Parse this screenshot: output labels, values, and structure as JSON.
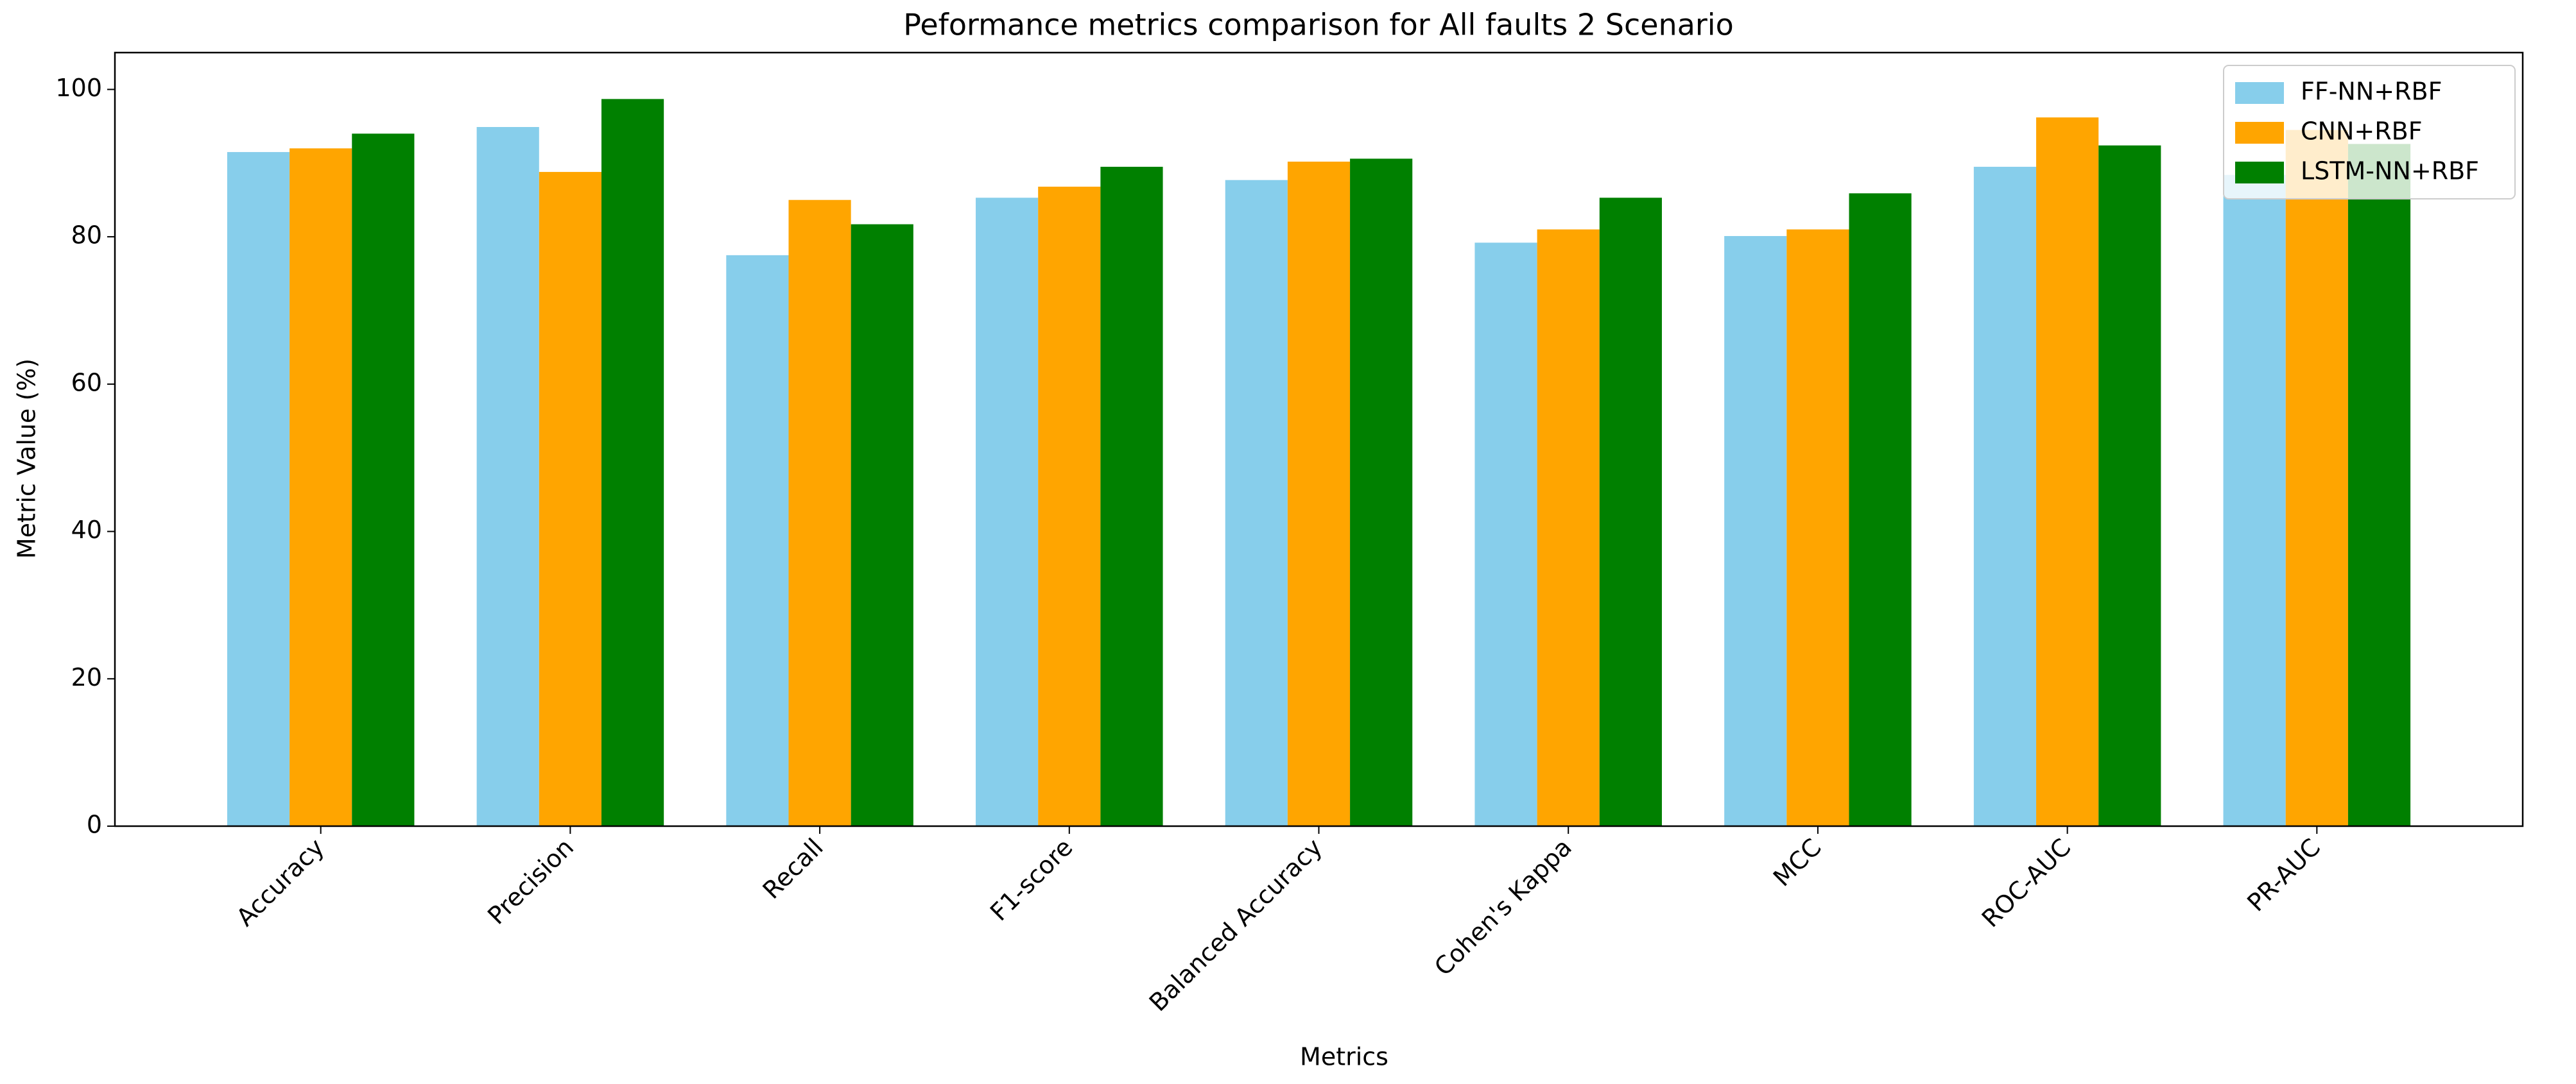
{
  "chart_data": {
    "type": "bar",
    "title": "Peformance metrics comparison for All faults 2 Scenario",
    "x_label": "Metrics",
    "y_label": "Metric Value (%)",
    "categories": [
      "Accuracy",
      "Precision",
      "Recall",
      "F1-score",
      "Balanced Accuracy",
      "Cohen's Kappa",
      "MCC",
      "ROC-AUC",
      "PR-AUC"
    ],
    "series": [
      {
        "name": "FF-NN+RBF",
        "color": "#87ceeb",
        "values": [
          91.5,
          94.9,
          77.5,
          85.3,
          87.7,
          79.2,
          80.1,
          89.5,
          88.4
        ]
      },
      {
        "name": "CNN+RBF",
        "color": "#ffa500",
        "values": [
          92.0,
          88.8,
          85.0,
          86.8,
          90.2,
          81.0,
          81.0,
          96.2,
          94.5
        ]
      },
      {
        "name": "LSTM-NN+RBF",
        "color": "#008000",
        "values": [
          94.0,
          98.7,
          81.7,
          89.5,
          90.6,
          85.3,
          85.9,
          92.4,
          92.6
        ]
      }
    ],
    "ylim": [
      0,
      105
    ],
    "yticks": [
      0,
      20,
      40,
      60,
      80,
      100
    ],
    "legend": "upper right"
  }
}
